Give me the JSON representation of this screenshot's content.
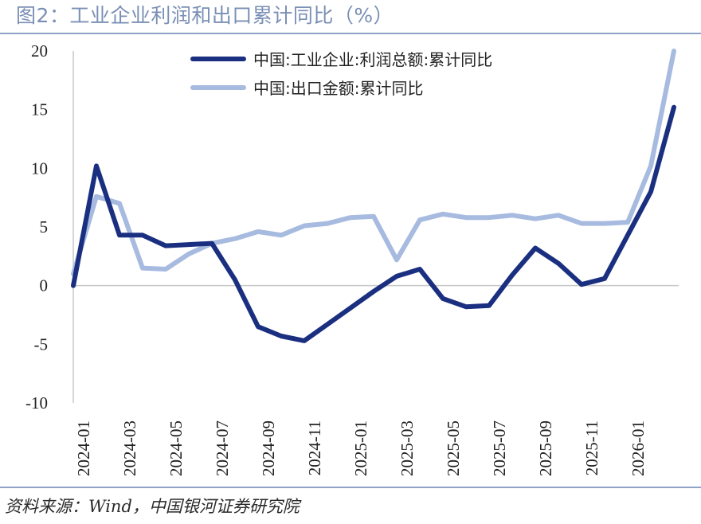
{
  "figure_title": "图2：工业企业利润和出口累计同比（%）",
  "source_note": "资料来源：Wind，中国银河证券研究院",
  "colors": {
    "title": "#7a8fb5",
    "rule": "#8fa3c8",
    "series_dark": "#1a2f80",
    "series_light": "#a7badf"
  },
  "chart_data": {
    "type": "line",
    "title": "",
    "xlabel": "",
    "ylabel": "",
    "ylim": [
      -10,
      20
    ],
    "yticks": [
      20,
      15,
      10,
      5,
      0,
      -5,
      -10
    ],
    "grid": false,
    "legend_position": "top-center",
    "x": [
      "2024-01",
      "2024-02",
      "2024-03",
      "2024-04",
      "2024-05",
      "2024-06",
      "2024-07",
      "2024-08",
      "2024-09",
      "2024-10",
      "2024-11",
      "2024-12",
      "2025-01",
      "2025-02",
      "2025-03",
      "2025-04",
      "2025-05",
      "2025-06",
      "2025-07",
      "2025-08",
      "2025-09",
      "2025-10",
      "2025-11",
      "2025-12",
      "2026-01",
      "2026-02",
      "2026-03"
    ],
    "xtick_labels": [
      "2024-01",
      "2024-03",
      "2024-05",
      "2024-07",
      "2024-09",
      "2024-11",
      "2025-01",
      "2025-03",
      "2025-05",
      "2025-07",
      "2025-09",
      "2025-11",
      "2026-01"
    ],
    "series": [
      {
        "name": "中国:工业企业:利润总额:累计同比",
        "color": "#1a2f80",
        "values": [
          0.0,
          10.2,
          4.3,
          4.3,
          3.4,
          3.5,
          3.6,
          0.5,
          -3.5,
          -4.3,
          -4.7,
          -3.3,
          -1.9,
          -0.5,
          0.8,
          1.4,
          -1.1,
          -1.8,
          -1.7,
          0.9,
          3.2,
          1.9,
          0.1,
          0.6,
          null,
          8.0,
          15.2
        ]
      },
      {
        "name": "中国:出口金额:累计同比",
        "color": "#a7badf",
        "values": [
          1.0,
          7.6,
          7.0,
          1.5,
          1.4,
          2.7,
          3.6,
          4.0,
          4.6,
          4.3,
          5.1,
          5.3,
          5.8,
          5.9,
          2.2,
          5.6,
          6.1,
          5.8,
          5.8,
          6.0,
          5.7,
          6.0,
          5.3,
          5.3,
          5.4,
          10.2,
          20.0
        ]
      }
    ]
  }
}
